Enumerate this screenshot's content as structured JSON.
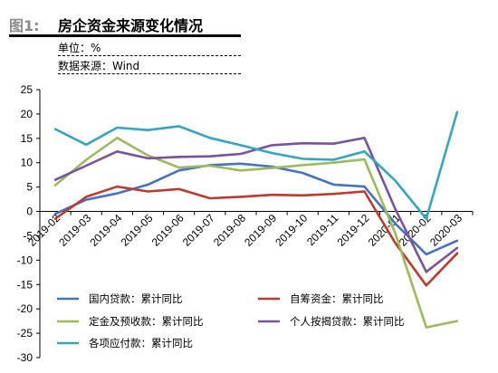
{
  "header": {
    "figure_label": "图1:",
    "title": "房企资金来源变化情况",
    "unit": "单位：%",
    "source": "数据来源：Wind"
  },
  "chart_data": {
    "type": "line",
    "categories": [
      "2019-02",
      "2019-03",
      "2019-04",
      "2019-05",
      "2019-06",
      "2019-07",
      "2019-08",
      "2019-09",
      "2019-10",
      "2019-11",
      "2019-12",
      "2020-01",
      "2020-02",
      "2020-03"
    ],
    "xtick_labels": [
      "2019-02",
      "2019-03",
      "2019-04",
      "2019-05",
      "2019-06",
      "2019-07",
      "2019-08",
      "2019-09",
      "2019-10",
      "2019-11",
      "2019-12",
      "2020-01",
      "2020-02",
      "2020-03"
    ],
    "ylim": [
      -30,
      25
    ],
    "yticks": [
      -30,
      -25,
      -20,
      -15,
      -10,
      -5,
      0,
      5,
      10,
      15,
      20,
      25
    ],
    "grid": false,
    "legend_position": "bottom-inside",
    "series": [
      {
        "name": "国内贷款：累计同比",
        "color": "#4472c4",
        "values": [
          -0.5,
          2.4,
          3.7,
          5.5,
          8.4,
          9.5,
          9.8,
          9.2,
          7.9,
          5.5,
          5.1,
          -2.5,
          -8.8,
          -6.0
        ]
      },
      {
        "name": "自筹资金：累计同比",
        "color": "#c0392b",
        "values": [
          -1.5,
          3.0,
          5.1,
          4.1,
          4.6,
          2.7,
          3.0,
          3.4,
          3.3,
          3.6,
          4.1,
          -6.5,
          -15.2,
          -8.6
        ]
      },
      {
        "name": "定金及预收款：累计同比",
        "color": "#9bbb59",
        "values": [
          5.4,
          10.6,
          15.1,
          11.5,
          9.0,
          9.4,
          8.4,
          8.9,
          9.5,
          10.0,
          10.7,
          -4.5,
          -23.8,
          -22.5
        ]
      },
      {
        "name": "个人按揭贷款：累计同比",
        "color": "#7b52a1",
        "values": [
          6.5,
          9.4,
          12.3,
          10.9,
          11.2,
          11.3,
          11.8,
          13.6,
          14.0,
          13.9,
          15.1,
          0.5,
          -12.4,
          -7.5
        ]
      },
      {
        "name": "各项应付款：累计同比",
        "color": "#31a7c4",
        "values": [
          16.9,
          13.7,
          17.2,
          16.7,
          17.5,
          15.1,
          13.6,
          12.0,
          10.8,
          10.6,
          12.3,
          6.3,
          -1.5,
          20.4
        ]
      }
    ]
  }
}
